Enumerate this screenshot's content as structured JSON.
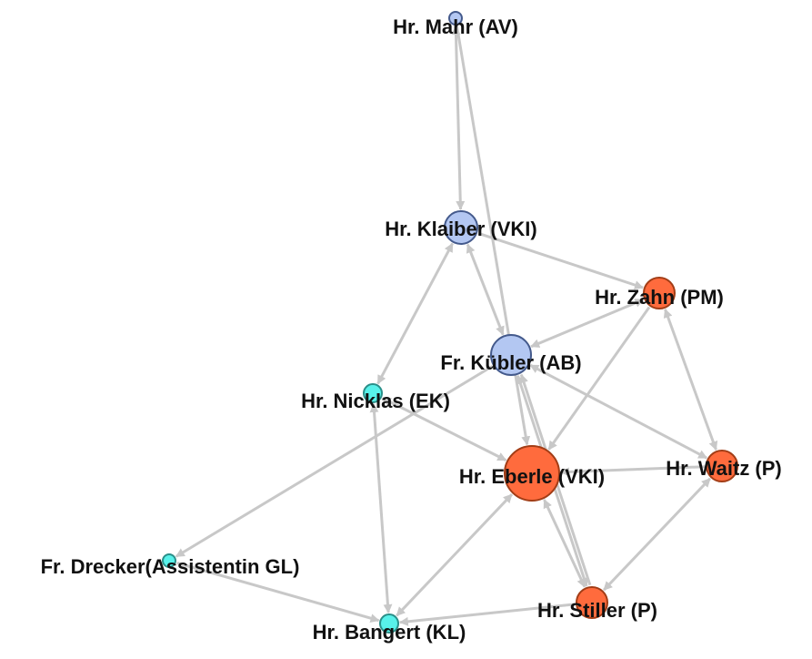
{
  "colors": {
    "edge": "#c8c8c8",
    "orange": "#ff6b3d",
    "orange_stroke": "#a23d16",
    "blue": "#b3c7f2",
    "blue_stroke": "#445a8c",
    "cyan": "#58f1ea",
    "cyan_stroke": "#2a8f89"
  },
  "nodes": [
    {
      "id": "mahr",
      "label": "Hr. Mahr (AV)",
      "group": "blue"
    },
    {
      "id": "klaiber",
      "label": "Hr. Klaiber (VKI)",
      "group": "blue"
    },
    {
      "id": "zahn",
      "label": "Hr. Zahn (PM)",
      "group": "orange"
    },
    {
      "id": "kubler",
      "label": "Fr. Kübler (AB)",
      "group": "blue"
    },
    {
      "id": "nicklas",
      "label": "Hr. Nicklas (EK)",
      "group": "cyan"
    },
    {
      "id": "eberle",
      "label": "Hr. Eberle (VKI)",
      "group": "orange"
    },
    {
      "id": "waitz",
      "label": "Hr. Waitz (P)",
      "group": "orange"
    },
    {
      "id": "drecker",
      "label": "Fr. Drecker(Assistentin GL)",
      "group": "cyan"
    },
    {
      "id": "stiller",
      "label": "Hr. Stiller (P)",
      "group": "orange"
    },
    {
      "id": "bangert",
      "label": "Hr. Bangert (KL)",
      "group": "cyan"
    }
  ],
  "edges": [
    {
      "source": "mahr",
      "target": "klaiber",
      "both": true
    },
    {
      "source": "mahr",
      "target": "eberle",
      "both": false
    },
    {
      "source": "klaiber",
      "target": "zahn",
      "both": false
    },
    {
      "source": "klaiber",
      "target": "kubler",
      "both": true
    },
    {
      "source": "klaiber",
      "target": "nicklas",
      "both": true
    },
    {
      "source": "zahn",
      "target": "kubler",
      "both": true
    },
    {
      "source": "zahn",
      "target": "waitz",
      "both": true
    },
    {
      "source": "zahn",
      "target": "eberle",
      "both": false
    },
    {
      "source": "kubler",
      "target": "drecker",
      "both": false
    },
    {
      "source": "kubler",
      "target": "waitz",
      "both": true
    },
    {
      "source": "kubler",
      "target": "stiller",
      "both": true
    },
    {
      "source": "stiller",
      "target": "kubler",
      "both": false
    },
    {
      "source": "nicklas",
      "target": "eberle",
      "both": true
    },
    {
      "source": "nicklas",
      "target": "bangert",
      "both": true
    },
    {
      "source": "waitz",
      "target": "eberle",
      "both": false
    },
    {
      "source": "waitz",
      "target": "stiller",
      "both": true
    },
    {
      "source": "eberle",
      "target": "stiller",
      "both": true
    },
    {
      "source": "eberle",
      "target": "bangert",
      "both": true
    },
    {
      "source": "drecker",
      "target": "bangert",
      "both": false
    },
    {
      "source": "stiller",
      "target": "bangert",
      "both": false
    }
  ]
}
